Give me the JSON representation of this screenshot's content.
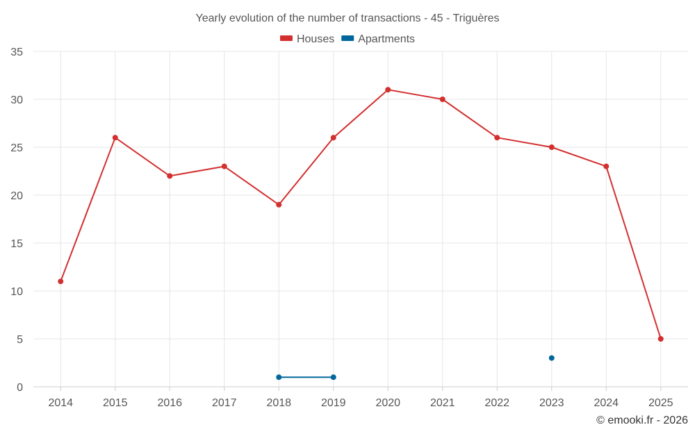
{
  "chart_data": {
    "type": "line",
    "title": "Yearly evolution of the number of transactions - 45 - Triguères",
    "categories": [
      "2014",
      "2015",
      "2016",
      "2017",
      "2018",
      "2019",
      "2020",
      "2021",
      "2022",
      "2023",
      "2024",
      "2025"
    ],
    "ylim": [
      0,
      35
    ],
    "yticks": [
      0,
      5,
      10,
      15,
      20,
      25,
      30,
      35
    ],
    "grid": true,
    "legend": "top-center",
    "series": [
      {
        "name": "Houses",
        "color": "#d32f2f",
        "values": [
          11,
          26,
          22,
          23,
          19,
          26,
          31,
          30,
          26,
          25,
          23,
          5
        ]
      },
      {
        "name": "Apartments",
        "color": "#01669b",
        "values": [
          null,
          null,
          null,
          null,
          1,
          1,
          null,
          null,
          null,
          3,
          null,
          null
        ]
      }
    ]
  },
  "credit": "© emooki.fr - 2026"
}
